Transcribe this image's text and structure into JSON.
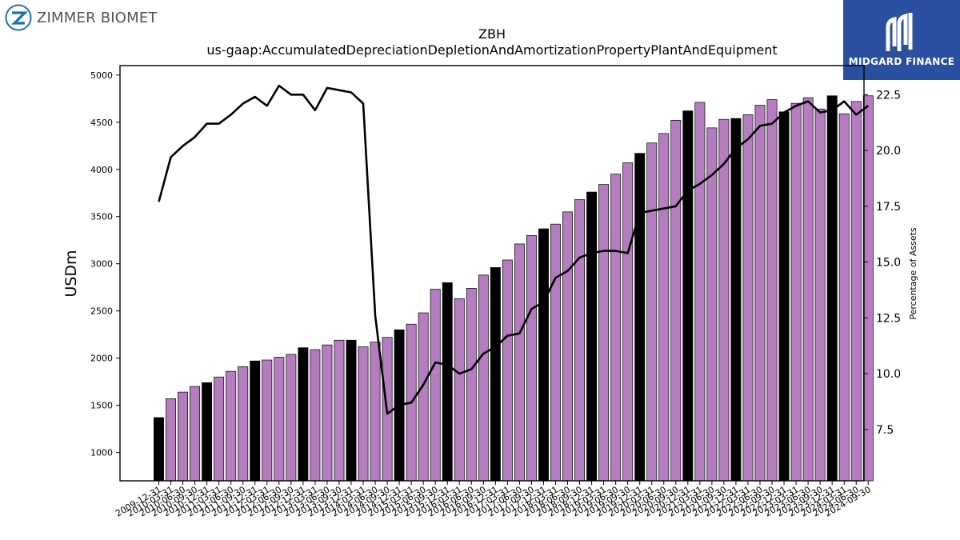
{
  "logos": {
    "left_brand": "ZIMMER BIOMET",
    "right_brand": "MIDGARD FINANCE"
  },
  "colors": {
    "bar_default": "#b57cc0",
    "bar_highlight": "#000000",
    "line": "#000000"
  },
  "chart_data": {
    "type": "bar",
    "title": "ZBH",
    "subtitle": "us-gaap:AccumulatedDepreciationDepletionAndAmortizationPropertyPlantAndEquipment",
    "ylabel": "USDm",
    "y2label": "Percentage of Assets",
    "ylim": [
      700,
      5100
    ],
    "y2lim": [
      5.2,
      23.8
    ],
    "yticks": [
      1000,
      1500,
      2000,
      2500,
      3000,
      3500,
      4000,
      4500,
      5000
    ],
    "y2ticks": [
      7.5,
      10.0,
      12.5,
      15.0,
      17.5,
      20.0,
      22.5
    ],
    "grid": false,
    "categories": [
      "2009-12-31",
      "2010-03-31",
      "2010-06-30",
      "2010-09-30",
      "2010-12-31",
      "2011-03-31",
      "2011-06-30",
      "2011-09-30",
      "2011-12-31",
      "2012-03-31",
      "2012-06-30",
      "2012-09-30",
      "2012-12-31",
      "2013-03-31",
      "2013-06-30",
      "2013-09-30",
      "2013-12-31",
      "2014-03-31",
      "2014-06-30",
      "2014-09-30",
      "2014-12-31",
      "2015-03-31",
      "2015-06-30",
      "2015-09-30",
      "2015-12-31",
      "2016-03-31",
      "2016-06-30",
      "2016-09-30",
      "2016-12-31",
      "2017-03-31",
      "2017-06-30",
      "2017-09-30",
      "2017-12-31",
      "2018-03-31",
      "2018-06-30",
      "2018-09-30",
      "2018-12-31",
      "2019-03-31",
      "2019-06-30",
      "2019-09-30",
      "2019-12-31",
      "2020-03-31",
      "2020-06-30",
      "2020-09-30",
      "2020-12-31",
      "2021-03-31",
      "2021-06-30",
      "2021-09-30",
      "2021-12-31",
      "2022-03-31",
      "2022-06-30",
      "2022-09-30",
      "2022-12-31",
      "2023-03-31",
      "2023-06-30",
      "2023-09-30",
      "2023-12-31",
      "2024-03-31",
      "2024-06-30",
      "2024-09-30"
    ],
    "tick_labels": [
      "2009-12-31",
      "2010-03-31",
      "2010-06-30",
      "2010-09-30",
      "2010-12-31",
      "2011-03-31",
      "2011-06-30",
      "2011-09-30",
      "2011-12-31",
      "2012-03-31",
      "2012-06-30",
      "2012-09-30",
      "2012-12-31",
      "2013-03-31",
      "2013-06-30",
      "2013-09-30",
      "2013-12-31",
      "2014-03-31",
      "2014-06-30",
      "2014-09-30",
      "2014-12-31",
      "2015-03-31",
      "2015-06-30",
      "2015-09-30",
      "2015-12-31",
      "2016-03-31",
      "2016-06-30",
      "2016-09-30",
      "2016-12-31",
      "2017-03-31",
      "2017-06-30",
      "2017-09-30",
      "2017-12-31",
      "2018-03-31",
      "2018-06-30",
      "2018-09-30",
      "2018-12-31",
      "2019-03-31",
      "2019-06-30",
      "2019-09-30",
      "2019-12-31",
      "2020-03-31",
      "2020-06-30",
      "2020-09-30",
      "2020-12-31",
      "2021-03-31",
      "2021-06-30",
      "2021-09-30",
      "2021-12-31",
      "2022-03-31",
      "2022-06-30",
      "2022-09-30",
      "2022-12-31",
      "2023-03-31",
      "2023-06-30",
      "2023-09-30",
      "2023-12-31",
      "2024-03-31",
      "2024-06-30",
      "2024-09-30"
    ],
    "highlight_categories": [
      "2009-12-31",
      "2010-12-31",
      "2011-12-31",
      "2012-12-31",
      "2013-12-31",
      "2014-12-31",
      "2015-12-31",
      "2016-12-31",
      "2017-12-31",
      "2018-12-31",
      "2019-12-31",
      "2020-12-31",
      "2021-12-31",
      "2022-12-31",
      "2023-12-31"
    ],
    "series": [
      {
        "type": "bar",
        "axis": "left",
        "values": [
          1370,
          1570,
          1640,
          1700,
          1740,
          1800,
          1860,
          1910,
          1970,
          1980,
          2010,
          2040,
          2110,
          2090,
          2140,
          2190,
          2190,
          2120,
          2170,
          2220,
          2300,
          2360,
          2480,
          2730,
          2800,
          2630,
          2740,
          2880,
          2960,
          3040,
          3210,
          3300,
          3370,
          3420,
          3550,
          3680,
          3760,
          3840,
          3950,
          4070,
          4170,
          4280,
          4380,
          4520,
          4620,
          4710,
          4440,
          4530,
          4540,
          4580,
          4680,
          4740,
          4610,
          4700,
          4760,
          4640,
          4780,
          4590,
          4720,
          4780
        ]
      },
      {
        "type": "line",
        "axis": "right",
        "values": [
          17.7,
          19.7,
          20.2,
          20.6,
          21.2,
          21.2,
          21.6,
          22.1,
          22.4,
          22.0,
          22.9,
          22.5,
          22.5,
          21.8,
          22.8,
          22.7,
          22.6,
          22.1,
          12.6,
          8.2,
          8.6,
          8.7,
          9.5,
          10.5,
          10.4,
          10.0,
          10.2,
          10.9,
          11.2,
          11.7,
          11.8,
          12.9,
          13.2,
          14.3,
          14.6,
          15.2,
          15.4,
          15.5,
          15.5,
          15.4,
          17.2,
          17.3,
          17.4,
          17.5,
          18.2,
          18.5,
          18.9,
          19.4,
          20.1,
          20.5,
          21.1,
          21.2,
          21.7,
          22.0,
          22.2,
          21.7,
          21.8,
          22.2,
          21.6,
          22.0
        ]
      }
    ]
  }
}
